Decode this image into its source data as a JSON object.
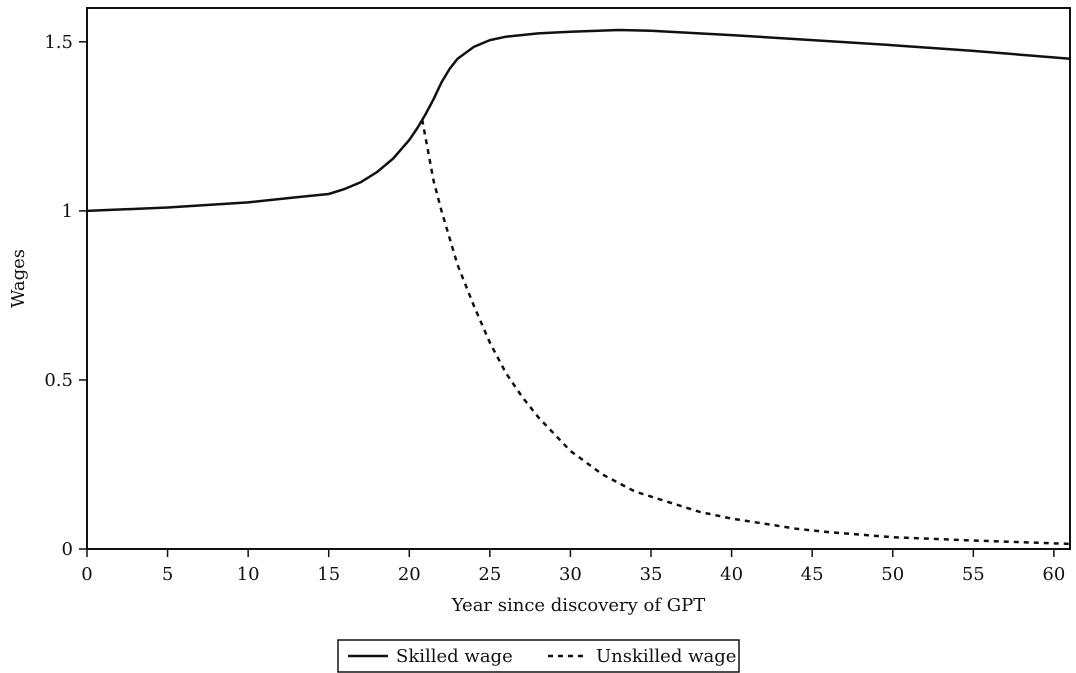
{
  "chart_data": {
    "type": "line",
    "title": "",
    "xlabel": "Year since discovery of GPT",
    "ylabel": "Wages",
    "xlim": [
      0,
      61
    ],
    "ylim": [
      0,
      1.6
    ],
    "x_ticks": [
      0,
      5,
      10,
      15,
      20,
      25,
      30,
      35,
      40,
      45,
      50,
      55,
      60
    ],
    "x_tick_labels": [
      "0",
      "5",
      "10",
      "15",
      "20",
      "25",
      "30",
      "35",
      "40",
      "45",
      "50",
      "55",
      "60"
    ],
    "y_ticks": [
      0,
      0.5,
      1,
      1.5
    ],
    "y_tick_labels": [
      "0",
      "0.5",
      "1",
      "1.5"
    ],
    "grid": false,
    "legend_position": "bottom-center",
    "series": [
      {
        "name": "Skilled wage",
        "style": "solid",
        "x": [
          0,
          5,
          10,
          13,
          15,
          16,
          17,
          18,
          19,
          20,
          20.5,
          21,
          21.5,
          22,
          22.5,
          23,
          24,
          25,
          26,
          28,
          30,
          33,
          35,
          40,
          45,
          50,
          55,
          61
        ],
        "y": [
          1.0,
          1.01,
          1.025,
          1.04,
          1.05,
          1.065,
          1.085,
          1.115,
          1.155,
          1.21,
          1.245,
          1.285,
          1.33,
          1.38,
          1.42,
          1.45,
          1.485,
          1.505,
          1.515,
          1.525,
          1.53,
          1.535,
          1.533,
          1.52,
          1.505,
          1.49,
          1.473,
          1.45
        ]
      },
      {
        "name": "Unskilled wage",
        "style": "dashed",
        "x": [
          20.8,
          21.5,
          22,
          23,
          24,
          25,
          26,
          27,
          28,
          30,
          32,
          34,
          36,
          38,
          40,
          42,
          44,
          46,
          50,
          55,
          61
        ],
        "y": [
          1.27,
          1.09,
          1.0,
          0.84,
          0.72,
          0.61,
          0.52,
          0.45,
          0.39,
          0.29,
          0.22,
          0.17,
          0.14,
          0.11,
          0.09,
          0.075,
          0.06,
          0.05,
          0.035,
          0.025,
          0.015
        ]
      }
    ]
  },
  "legend": {
    "items": [
      {
        "label": "Skilled wage",
        "style": "solid"
      },
      {
        "label": "Unskilled wage",
        "style": "dashed"
      }
    ]
  }
}
